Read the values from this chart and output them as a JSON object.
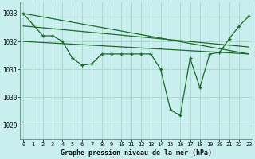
{
  "title": "Graphe pression niveau de la mer (hPa)",
  "background_color": "#c8eeee",
  "grid_color": "#b0d8d0",
  "line_color": "#1a6b2a",
  "x_ticks": [
    0,
    1,
    2,
    3,
    4,
    5,
    6,
    7,
    8,
    9,
    10,
    11,
    12,
    13,
    14,
    15,
    16,
    17,
    18,
    19,
    20,
    21,
    22,
    23
  ],
  "y_ticks": [
    1029,
    1030,
    1031,
    1032,
    1033
  ],
  "ylim": [
    1028.5,
    1033.4
  ],
  "xlim": [
    -0.3,
    23.3
  ],
  "series1_y": [
    1033.0,
    1032.6,
    1032.2,
    1032.2,
    1032.0,
    1031.4,
    1031.15,
    1031.2,
    1031.55,
    1031.55,
    1031.55,
    1031.55,
    1031.55,
    1031.55,
    1031.0,
    1029.55,
    1029.35,
    1031.4,
    1030.35,
    1031.55,
    1031.6,
    1032.1,
    1032.55,
    1032.9
  ],
  "trend1_x": [
    0,
    23
  ],
  "trend1_y": [
    1033.0,
    1031.55
  ],
  "trend2_x": [
    0,
    23
  ],
  "trend2_y": [
    1032.55,
    1031.8
  ],
  "trend3_x": [
    0,
    23
  ],
  "trend3_y": [
    1032.0,
    1031.55
  ]
}
